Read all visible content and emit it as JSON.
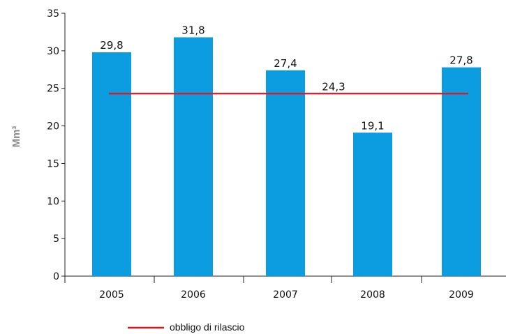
{
  "chart_data": {
    "type": "bar",
    "title": "",
    "xlabel": "",
    "ylabel": "Mm³",
    "categories": [
      "2005",
      "2006",
      "2007",
      "2008",
      "2009"
    ],
    "values": [
      29.8,
      31.8,
      27.4,
      19.1,
      27.8
    ],
    "value_labels": [
      "29,8",
      "31,8",
      "27,4",
      "19,1",
      "27,8"
    ],
    "ylim": [
      0,
      35
    ],
    "yticks": [
      "0",
      "5",
      "10",
      "15",
      "20",
      "25",
      "30",
      "35"
    ],
    "reference_line": {
      "value": 24.3,
      "label": "24,3",
      "name": "obbligo di rilascio"
    },
    "bar_color": "#0b9de0",
    "line_color": "#e0141e",
    "grid": false,
    "legend": {
      "position": "bottom",
      "entries": [
        "obbligo di rilascio"
      ]
    }
  }
}
